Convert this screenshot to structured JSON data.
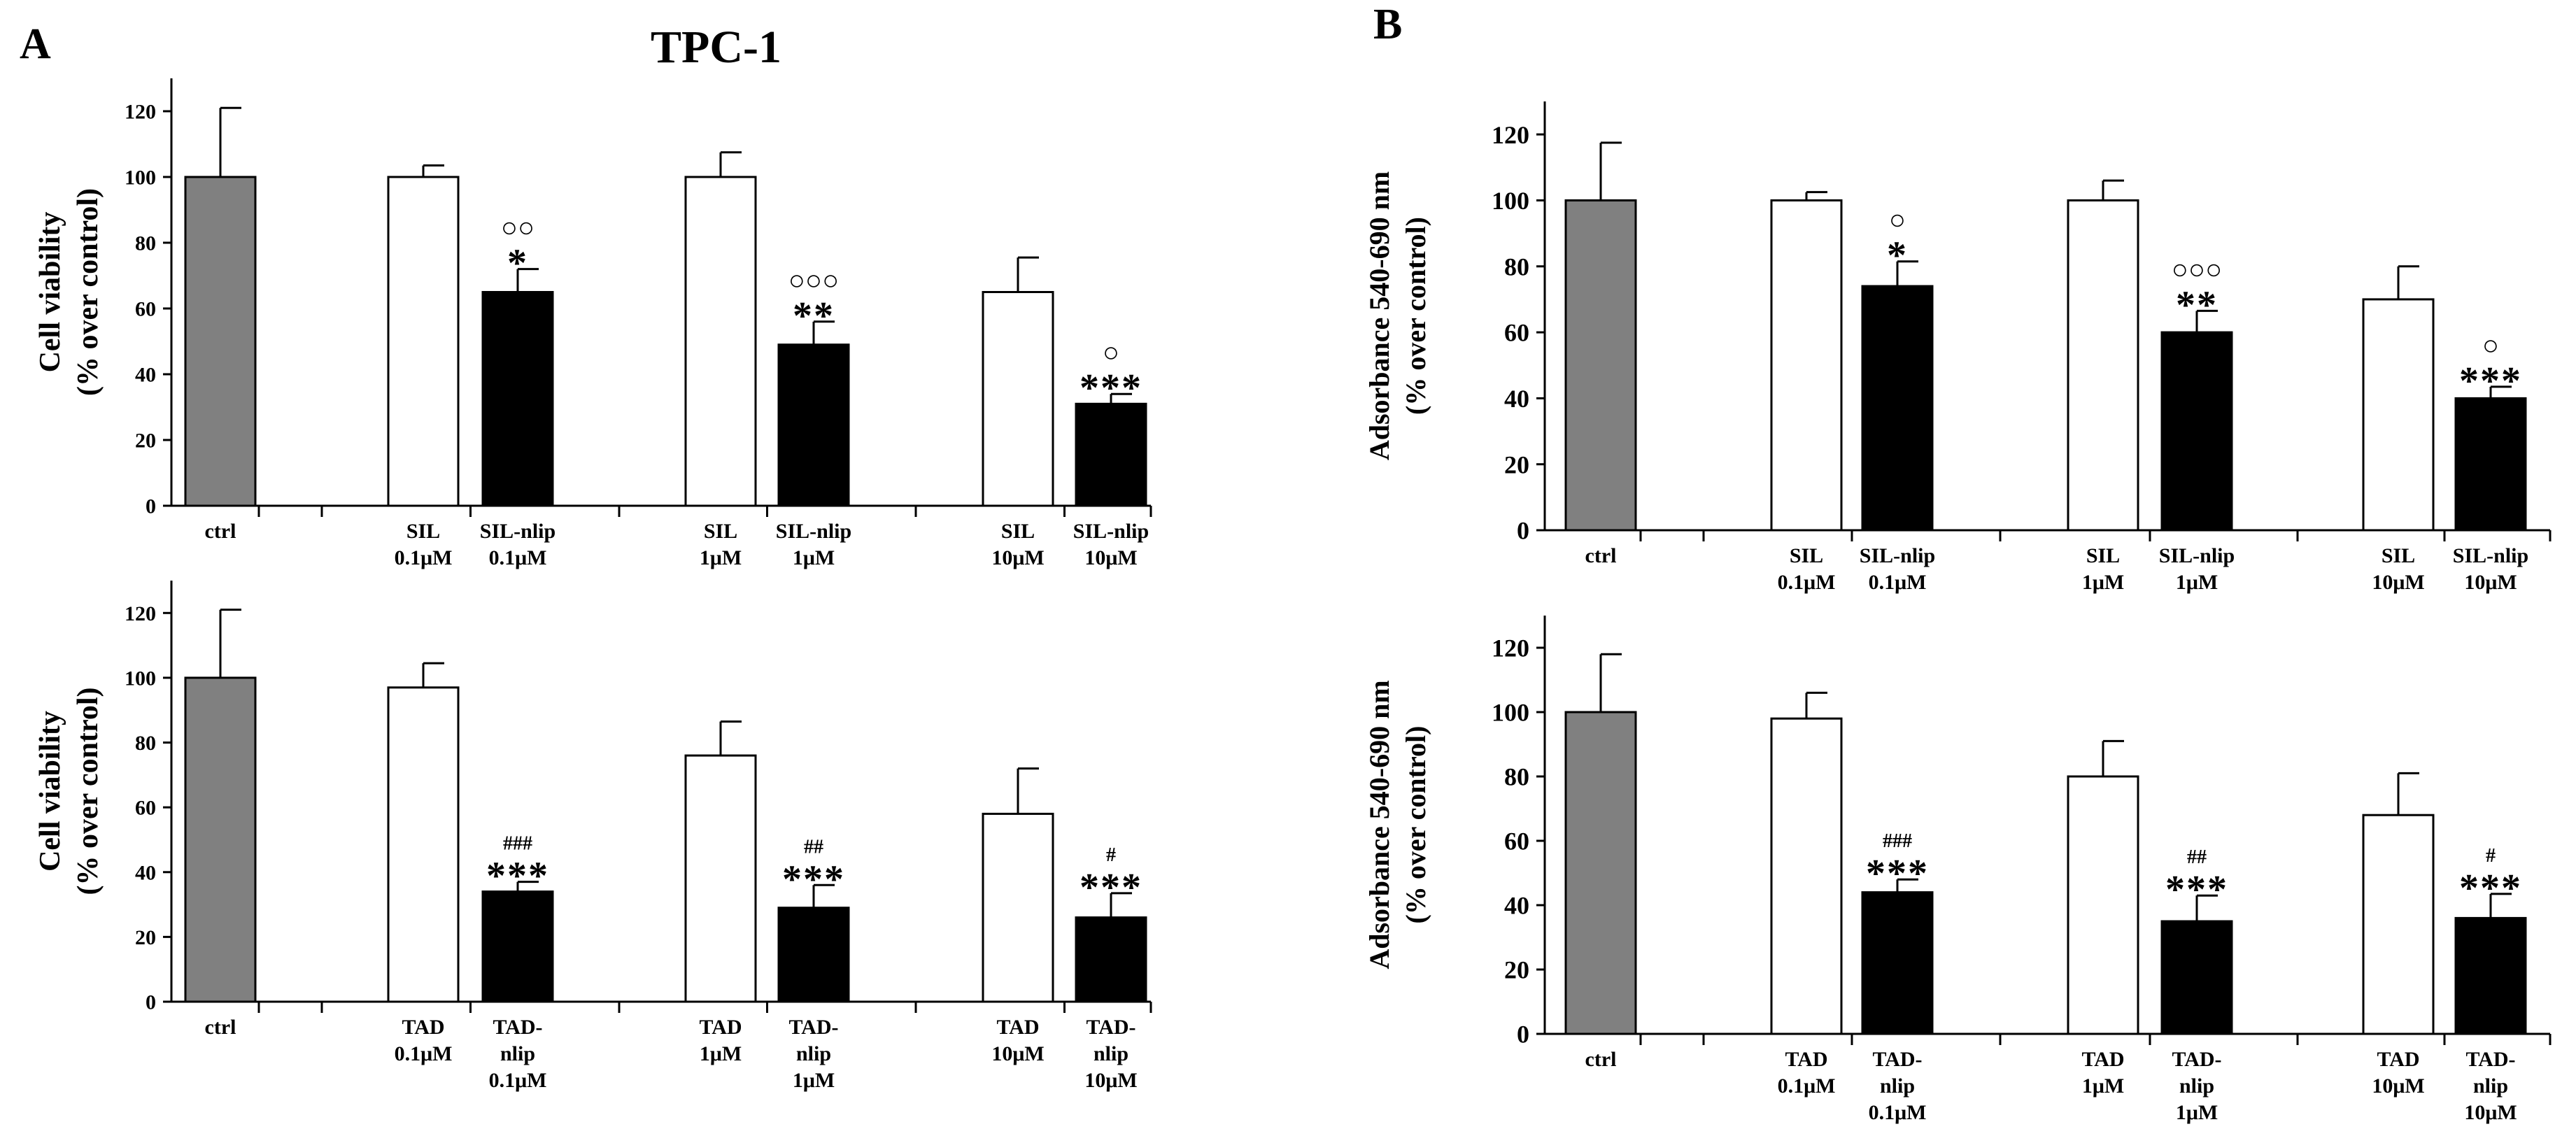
{
  "panels": {
    "A": {
      "letter": "A",
      "title": "TPC-1"
    },
    "B": {
      "letter": "B"
    }
  },
  "colors": {
    "ctrl_fill": "#808080",
    "free_fill": "#ffffff",
    "nlip_fill": "#000000",
    "axis": "#000000"
  },
  "chart_data": [
    {
      "type": "bar",
      "panel": "A",
      "position": "top",
      "title": "",
      "ylabel": [
        "Cell viability",
        "(% over control)"
      ],
      "ylim": [
        0,
        130
      ],
      "yticks": [
        0,
        20,
        40,
        60,
        80,
        100,
        120
      ],
      "bars": [
        {
          "label": [
            "ctrl"
          ],
          "value": 100,
          "error": 21,
          "fill": "ctrl",
          "group": 0,
          "slot": 0,
          "annotations": []
        },
        {
          "label": [
            "SIL",
            "0.1μM"
          ],
          "value": 100,
          "error": 3.5,
          "fill": "free",
          "group": 1,
          "slot": 0,
          "annotations": []
        },
        {
          "label": [
            "SIL-nlip",
            "0.1μM"
          ],
          "value": 65,
          "error": 7,
          "fill": "nlip",
          "group": 1,
          "slot": 1,
          "annotations": [
            "*",
            "○○"
          ]
        },
        {
          "label": [
            "SIL",
            "1μM"
          ],
          "value": 100,
          "error": 7.5,
          "fill": "free",
          "group": 2,
          "slot": 0,
          "annotations": []
        },
        {
          "label": [
            "SIL-nlip",
            "1μM"
          ],
          "value": 49,
          "error": 7,
          "fill": "nlip",
          "group": 2,
          "slot": 1,
          "annotations": [
            "**",
            "○○○"
          ]
        },
        {
          "label": [
            "SIL",
            "10μM"
          ],
          "value": 65,
          "error": 10.5,
          "fill": "free",
          "group": 3,
          "slot": 0,
          "annotations": []
        },
        {
          "label": [
            "SIL-nlip",
            "10μM"
          ],
          "value": 31,
          "error": 3,
          "fill": "nlip",
          "group": 3,
          "slot": 1,
          "annotations": [
            "***",
            "○"
          ]
        }
      ]
    },
    {
      "type": "bar",
      "panel": "A",
      "position": "bottom",
      "title": "",
      "ylabel": [
        "Cell viability",
        "(% over control)"
      ],
      "ylim": [
        0,
        130
      ],
      "yticks": [
        0,
        20,
        40,
        60,
        80,
        100,
        120
      ],
      "bars": [
        {
          "label": [
            "ctrl"
          ],
          "value": 100,
          "error": 21,
          "fill": "ctrl",
          "group": 0,
          "slot": 0,
          "annotations": []
        },
        {
          "label": [
            "TAD",
            "0.1μM"
          ],
          "value": 97,
          "error": 7.5,
          "fill": "free",
          "group": 1,
          "slot": 0,
          "annotations": []
        },
        {
          "label": [
            "TAD-",
            "nlip",
            "0.1μM"
          ],
          "value": 34,
          "error": 3,
          "fill": "nlip",
          "group": 1,
          "slot": 1,
          "annotations": [
            "***",
            "###"
          ]
        },
        {
          "label": [
            "TAD",
            "1μM"
          ],
          "value": 76,
          "error": 10.5,
          "fill": "free",
          "group": 2,
          "slot": 0,
          "annotations": []
        },
        {
          "label": [
            "TAD-",
            "nlip",
            "1μM"
          ],
          "value": 29,
          "error": 7,
          "fill": "nlip",
          "group": 2,
          "slot": 1,
          "annotations": [
            "***",
            "##"
          ]
        },
        {
          "label": [
            "TAD",
            "10μM"
          ],
          "value": 58,
          "error": 14,
          "fill": "free",
          "group": 3,
          "slot": 0,
          "annotations": []
        },
        {
          "label": [
            "TAD-",
            "nlip",
            "10μM"
          ],
          "value": 26,
          "error": 7.5,
          "fill": "nlip",
          "group": 3,
          "slot": 1,
          "annotations": [
            "***",
            "#"
          ]
        }
      ]
    },
    {
      "type": "bar",
      "panel": "B",
      "position": "top",
      "title": "",
      "ylabel": [
        "Adsorbance 540-690 nm",
        "(% over control)"
      ],
      "ylim": [
        0,
        130
      ],
      "yticks": [
        0,
        20,
        40,
        60,
        80,
        100,
        120
      ],
      "bars": [
        {
          "label": [
            "ctrl"
          ],
          "value": 100,
          "error": 17.5,
          "fill": "ctrl",
          "group": 0,
          "slot": 0,
          "annotations": []
        },
        {
          "label": [
            "SIL",
            "0.1μM"
          ],
          "value": 100,
          "error": 2.5,
          "fill": "free",
          "group": 1,
          "slot": 0,
          "annotations": []
        },
        {
          "label": [
            "SIL-nlip",
            "0.1μM"
          ],
          "value": 74,
          "error": 7.5,
          "fill": "nlip",
          "group": 1,
          "slot": 1,
          "annotations": [
            "*",
            "○"
          ]
        },
        {
          "label": [
            "SIL",
            "1μM"
          ],
          "value": 100,
          "error": 6,
          "fill": "free",
          "group": 2,
          "slot": 0,
          "annotations": []
        },
        {
          "label": [
            "SIL-nlip",
            "1μM"
          ],
          "value": 60,
          "error": 6.5,
          "fill": "nlip",
          "group": 2,
          "slot": 1,
          "annotations": [
            "**",
            "○○○"
          ]
        },
        {
          "label": [
            "SIL",
            "10μM"
          ],
          "value": 70,
          "error": 10,
          "fill": "free",
          "group": 3,
          "slot": 0,
          "annotations": []
        },
        {
          "label": [
            "SIL-nlip",
            "10μM"
          ],
          "value": 40,
          "error": 3.5,
          "fill": "nlip",
          "group": 3,
          "slot": 1,
          "annotations": [
            "***",
            "○"
          ]
        }
      ]
    },
    {
      "type": "bar",
      "panel": "B",
      "position": "bottom",
      "title": "",
      "ylabel": [
        "Adsorbance 540-690 nm",
        "(% over control)"
      ],
      "ylim": [
        0,
        130
      ],
      "yticks": [
        0,
        20,
        40,
        60,
        80,
        100,
        120
      ],
      "bars": [
        {
          "label": [
            "ctrl"
          ],
          "value": 100,
          "error": 18,
          "fill": "ctrl",
          "group": 0,
          "slot": 0,
          "annotations": []
        },
        {
          "label": [
            "TAD",
            "0.1μM"
          ],
          "value": 98,
          "error": 8,
          "fill": "free",
          "group": 1,
          "slot": 0,
          "annotations": []
        },
        {
          "label": [
            "TAD-",
            "nlip",
            "0.1μM"
          ],
          "value": 44,
          "error": 4,
          "fill": "nlip",
          "group": 1,
          "slot": 1,
          "annotations": [
            "***",
            "###"
          ]
        },
        {
          "label": [
            "TAD",
            "1μM"
          ],
          "value": 80,
          "error": 11,
          "fill": "free",
          "group": 2,
          "slot": 0,
          "annotations": []
        },
        {
          "label": [
            "TAD-",
            "nlip",
            "1μM"
          ],
          "value": 35,
          "error": 8,
          "fill": "nlip",
          "group": 2,
          "slot": 1,
          "annotations": [
            "***",
            "##"
          ]
        },
        {
          "label": [
            "TAD",
            "10μM"
          ],
          "value": 68,
          "error": 13,
          "fill": "free",
          "group": 3,
          "slot": 0,
          "annotations": []
        },
        {
          "label": [
            "TAD-",
            "nlip",
            "10μM"
          ],
          "value": 36,
          "error": 7.5,
          "fill": "nlip",
          "group": 3,
          "slot": 1,
          "annotations": [
            "***",
            "#"
          ]
        }
      ]
    }
  ]
}
